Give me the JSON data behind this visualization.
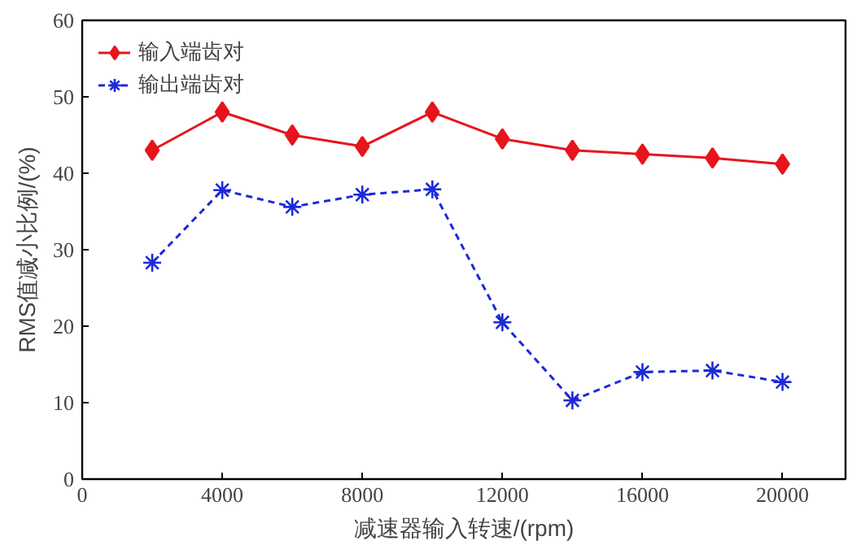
{
  "chart_data": {
    "type": "line",
    "xlabel": "减速器输入转速/(rpm)",
    "ylabel": "RMS值减小比例/(%)",
    "x": [
      2000,
      4000,
      6000,
      8000,
      10000,
      12000,
      14000,
      16000,
      18000,
      20000
    ],
    "series": [
      {
        "name": "输入端齿对",
        "color": "#e8141c",
        "marker": "diamond",
        "line_style": "solid",
        "values": [
          43,
          48,
          45,
          43.5,
          48,
          44.5,
          43,
          42.5,
          42,
          41.2
        ]
      },
      {
        "name": "输出端齿对",
        "color": "#1c2ad8",
        "marker": "cross",
        "line_style": "dashed",
        "values": [
          28.3,
          37.8,
          35.6,
          37.2,
          37.9,
          20.5,
          10.3,
          14,
          14.2,
          12.7
        ]
      }
    ],
    "xlim": [
      0,
      21800
    ],
    "ylim": [
      0,
      60
    ],
    "xticks": [
      0,
      4000,
      8000,
      12000,
      16000,
      20000
    ],
    "yticks": [
      0,
      10,
      20,
      30,
      40,
      50,
      60
    ],
    "grid": false,
    "legend": "top left"
  }
}
